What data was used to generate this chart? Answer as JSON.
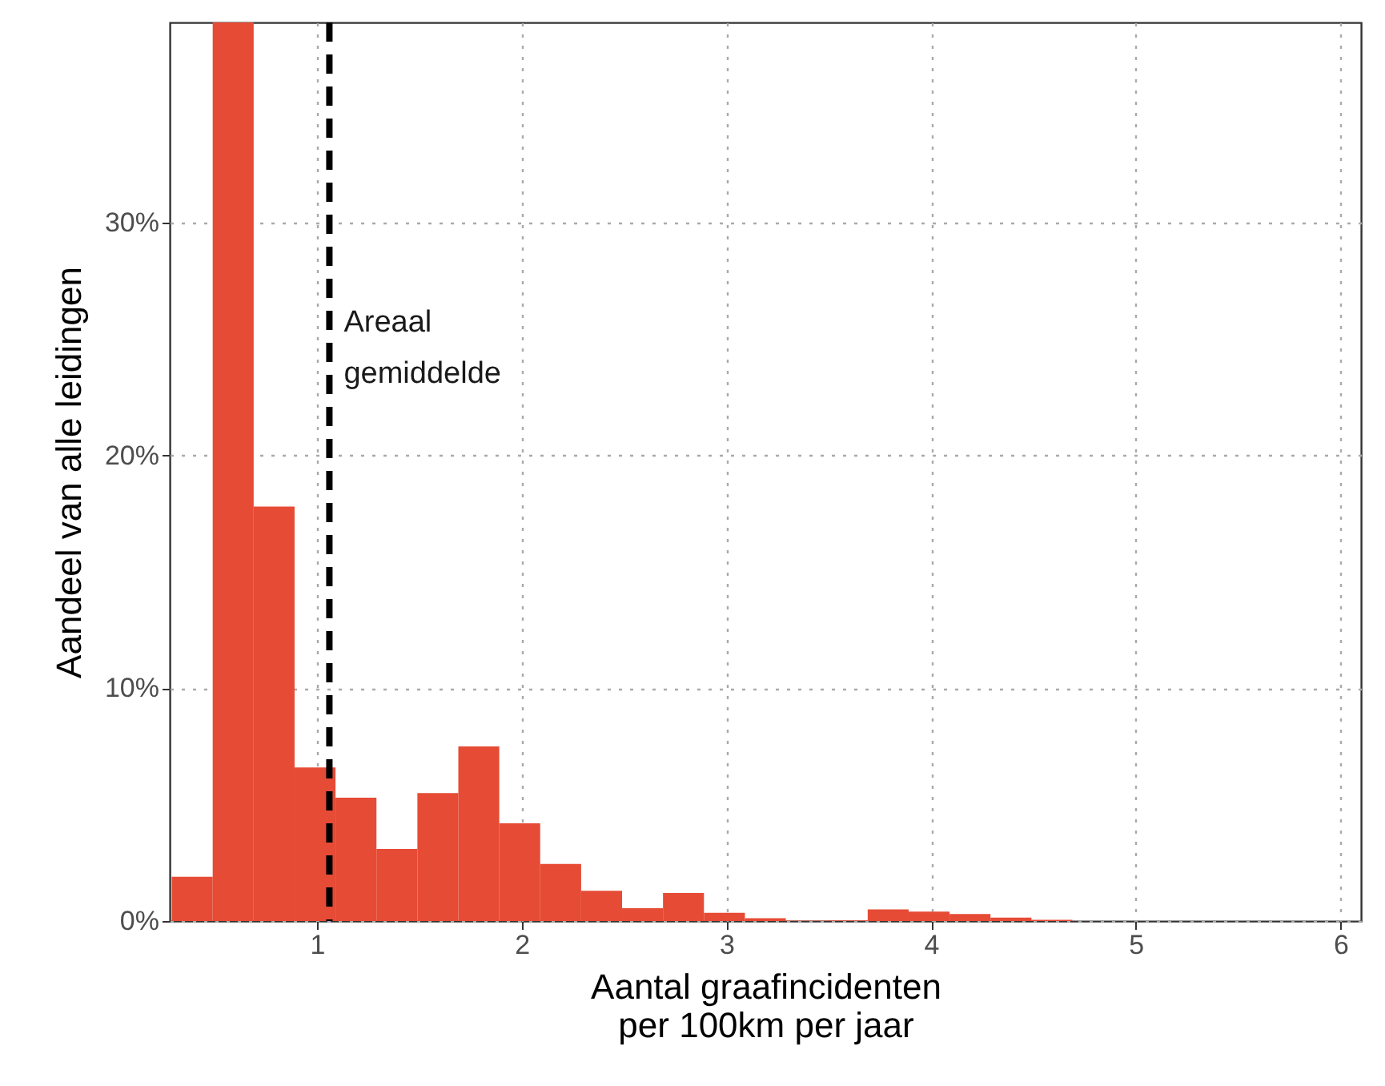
{
  "chart_data": {
    "type": "histogram",
    "xlabel": "Aantal graafincidenten\nper 100km per jaar",
    "ylabel": "Aandeel van alle leidingen",
    "bins": [
      0.29,
      0.49,
      0.69,
      0.89,
      1.09,
      1.29,
      1.49,
      1.69,
      1.89,
      2.09,
      2.29,
      2.49,
      2.69,
      2.89,
      3.09,
      3.29,
      3.49,
      3.69,
      3.89,
      4.09,
      4.29,
      4.49,
      4.69,
      4.89,
      5.09,
      5.29,
      5.49,
      5.69,
      5.89,
      6.09
    ],
    "values": [
      1.9,
      38.6,
      17.8,
      6.6,
      5.3,
      3.1,
      5.5,
      7.5,
      4.2,
      2.45,
      1.3,
      0.55,
      1.2,
      0.35,
      0.12,
      0.02,
      0.03,
      0.5,
      0.4,
      0.3,
      0.15,
      0.05,
      0,
      0,
      0,
      0,
      0,
      0,
      0
    ],
    "color": "#e64b35",
    "xlim": [
      0.28,
      6.1
    ],
    "ylim": [
      0,
      38.6
    ],
    "xticks": [
      1,
      2,
      3,
      4,
      5,
      6
    ],
    "yticks": [
      {
        "value": 0,
        "label": "0%"
      },
      {
        "value": 10,
        "label": "10%"
      },
      {
        "value": 20,
        "label": "20%"
      },
      {
        "value": 30,
        "label": "30%"
      }
    ],
    "grid": true,
    "ref_lines": [
      {
        "axis": "x",
        "value": 1.06,
        "label": "Areaal gemiddelde",
        "color": "#000000",
        "line_style": "dashed"
      }
    ]
  }
}
